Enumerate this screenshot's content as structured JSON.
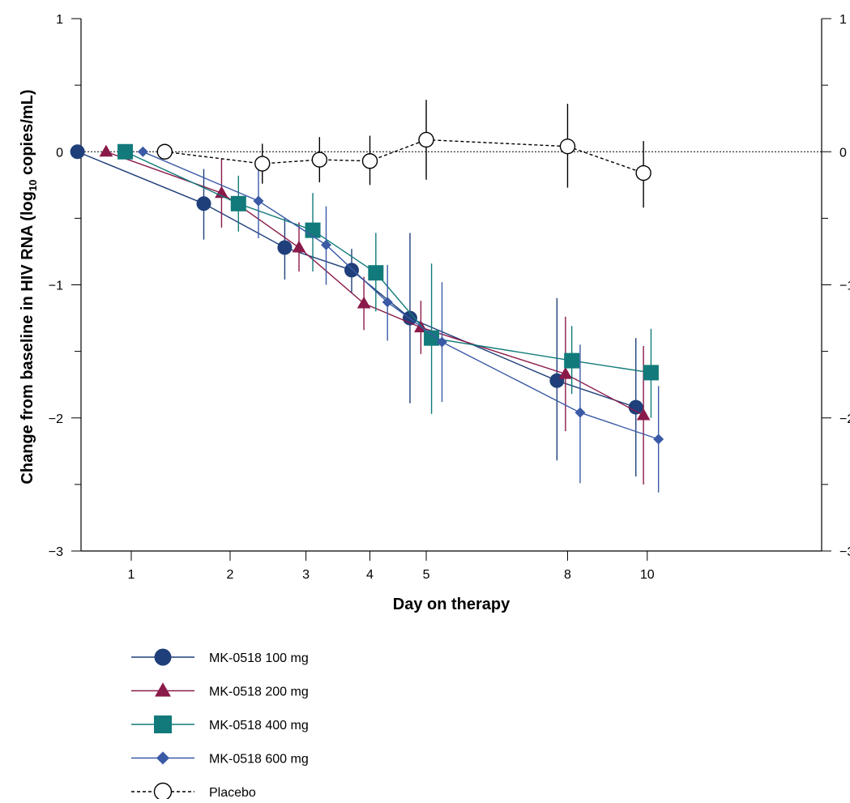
{
  "chart_data": {
    "type": "line",
    "title": "",
    "xlabel": "Day on therapy",
    "ylabel_main": "Change from baseline in HIV RNA (log",
    "ylabel_sub": "10",
    "ylabel_tail": " copies/mL)",
    "ylim": [
      -3,
      1
    ],
    "x_scale": "sqrt",
    "x_ticks": [
      1,
      2,
      3,
      4,
      5,
      8,
      10
    ],
    "x_tick_labels": [
      "1",
      "2",
      "3",
      "4",
      "5",
      "8",
      "10"
    ],
    "y_ticks": [
      1,
      0,
      -1,
      -2,
      -3
    ],
    "y_tick_labels": [
      "1",
      "0",
      "−1",
      "−2",
      "−3"
    ],
    "grid": false,
    "reference_line_y": 0,
    "legend_position": "bottom-left",
    "series": [
      {
        "name": "MK-0518 100 mg",
        "color": "#1f3f7a",
        "marker": "circle",
        "dashed": false,
        "x": [
          0.6,
          1.7,
          2.7,
          3.7,
          4.7,
          7.75,
          9.7
        ],
        "y": [
          0.0,
          -0.39,
          -0.72,
          -0.89,
          -1.25,
          -1.72,
          -1.92
        ],
        "err_low": [
          0.0,
          -0.66,
          -0.96,
          -1.06,
          -1.89,
          -2.32,
          -2.44
        ],
        "err_high": [
          0.0,
          -0.13,
          -0.5,
          -0.73,
          -0.61,
          -1.1,
          -1.4
        ]
      },
      {
        "name": "MK-0518 200 mg",
        "color": "#8a1a4a",
        "marker": "triangle",
        "dashed": false,
        "x": [
          0.8,
          1.9,
          2.9,
          3.9,
          4.9,
          7.95,
          9.9
        ],
        "y": [
          0.0,
          -0.31,
          -0.72,
          -1.14,
          -1.32,
          -1.67,
          -1.98
        ],
        "err_low": [
          0.0,
          -0.57,
          -0.9,
          -1.34,
          -1.52,
          -2.1,
          -2.5
        ],
        "err_high": [
          0.0,
          -0.05,
          -0.53,
          -0.94,
          -1.12,
          -1.24,
          -1.46
        ]
      },
      {
        "name": "MK-0518 400 mg",
        "color": "#127a7a",
        "marker": "square",
        "dashed": false,
        "x": [
          0.95,
          2.1,
          3.1,
          4.1,
          5.1,
          8.1,
          10.1
        ],
        "y": [
          0.0,
          -0.39,
          -0.59,
          -0.91,
          -1.4,
          -1.57,
          -1.66
        ],
        "err_low": [
          0.0,
          -0.6,
          -0.9,
          -1.2,
          -1.97,
          -1.82,
          -2.0
        ],
        "err_high": [
          0.0,
          -0.18,
          -0.31,
          -0.61,
          -0.84,
          -1.31,
          -1.33
        ]
      },
      {
        "name": "MK-0518 600 mg",
        "color": "#3a5aa6",
        "marker": "diamond",
        "dashed": false,
        "x": [
          1.1,
          2.35,
          3.3,
          4.3,
          5.3,
          8.3,
          10.3
        ],
        "y": [
          0.0,
          -0.37,
          -0.7,
          -1.13,
          -1.43,
          -1.96,
          -2.16
        ],
        "err_low": [
          0.0,
          -0.65,
          -1.0,
          -1.42,
          -1.88,
          -2.49,
          -2.56
        ],
        "err_high": [
          0.0,
          -0.09,
          -0.41,
          -0.85,
          -0.98,
          -1.45,
          -1.76
        ]
      },
      {
        "name": "Placebo",
        "color": "#000000",
        "marker": "open-circle",
        "dashed": true,
        "x": [
          1.3,
          2.4,
          3.2,
          4.0,
          5.0,
          8.0,
          9.9
        ],
        "y": [
          0.0,
          -0.09,
          -0.06,
          -0.07,
          0.09,
          0.04,
          -0.16
        ],
        "err_low": [
          0.0,
          -0.24,
          -0.23,
          -0.25,
          -0.21,
          -0.27,
          -0.42
        ],
        "err_high": [
          0.0,
          0.06,
          0.11,
          0.12,
          0.39,
          0.36,
          0.08
        ]
      }
    ]
  }
}
